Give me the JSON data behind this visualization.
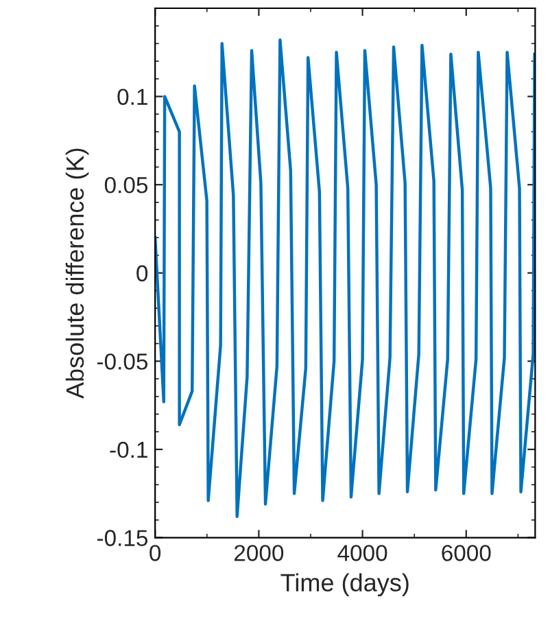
{
  "chart_data": {
    "type": "line",
    "xlabel": "Time (days)",
    "ylabel": "Absolute difference (K)",
    "x": [
      0,
      167,
      185,
      469,
      469,
      715,
      760,
      998,
      1025,
      1263,
      1290,
      1510,
      1581,
      1775,
      1863,
      2040,
      2128,
      2350,
      2410,
      2614,
      2684,
      2906,
      2950,
      3170,
      3232,
      3452,
      3497,
      3717,
      3780,
      4000,
      4045,
      4265,
      4318,
      4530,
      4601,
      4821,
      4866,
      5086,
      5148,
      5377,
      5412,
      5642,
      5704,
      5925,
      5952,
      6190,
      6233,
      6472,
      6498,
      6737,
      6790,
      7028,
      7055,
      7293,
      7320
    ],
    "series": [
      {
        "color": "#0072bd",
        "values": [
          0.02,
          -0.073,
          0.1,
          0.08,
          -0.086,
          -0.067,
          0.106,
          0.041,
          -0.129,
          -0.041,
          0.13,
          0.044,
          -0.138,
          -0.059,
          0.126,
          0.051,
          -0.131,
          -0.053,
          0.132,
          0.058,
          -0.125,
          -0.054,
          0.122,
          0.046,
          -0.129,
          -0.05,
          0.125,
          0.048,
          -0.127,
          -0.049,
          0.126,
          0.05,
          -0.125,
          -0.048,
          0.128,
          0.051,
          -0.124,
          -0.046,
          0.129,
          0.052,
          -0.123,
          -0.049,
          0.124,
          0.047,
          -0.125,
          -0.049,
          0.125,
          0.048,
          -0.125,
          -0.048,
          0.125,
          0.048,
          -0.124,
          -0.046,
          0.124
        ]
      }
    ],
    "xlim": [
      0,
      7330
    ],
    "xticks": [
      0,
      2000,
      4000,
      6000
    ],
    "ylim": [
      -0.15,
      0.15
    ],
    "yticks": [
      -0.15,
      -0.1,
      -0.05,
      0,
      0.05,
      0.1
    ],
    "grid": false,
    "legend": false
  }
}
